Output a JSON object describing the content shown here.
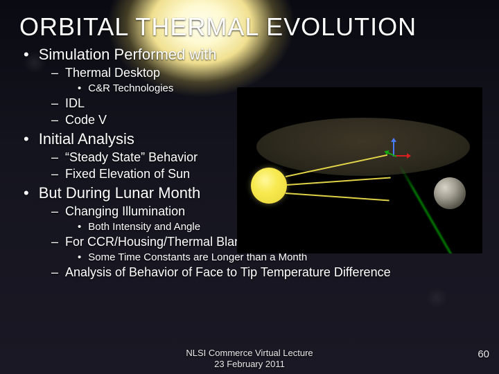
{
  "title": "ORBITAL THERMAL EVOLUTION",
  "bullets": {
    "b1": "Simulation Performed with",
    "b1_1": "Thermal Desktop",
    "b1_1_1": "C&R Technologies",
    "b1_2": "IDL",
    "b1_3": "Code V",
    "b2": "Initial Analysis",
    "b2_1": "“Steady State” Behavior",
    "b2_2": "Fixed Elevation of Sun",
    "b3": "But During Lunar Month",
    "b3_1": "Changing Illumination",
    "b3_1_1": "Both Intensity and Angle",
    "b3_2": "For CCR/Housing/Thermal Blanket/Regolith",
    "b3_2_1": "Some Time Constants are Longer than a Month",
    "b3_3": "Analysis of Behavior of Face to Tip Temperature Difference"
  },
  "footer": {
    "line1": "NLSI Commerce Virtual Lecture",
    "line2": "23 February 2011"
  },
  "page_number": "60",
  "figure": {
    "watermark": "",
    "colors": {
      "background": "#000000",
      "ellipse_fill": "#2e2a1e",
      "sun": "#f7e94f",
      "ray": "#f7e94f",
      "axis_x": "#d62020",
      "axis_y": "#13a813",
      "axis_z": "#4a7aff",
      "moon": "#a29e92",
      "beam": "#00dc00"
    }
  }
}
